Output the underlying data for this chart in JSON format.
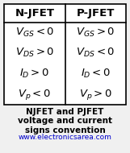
{
  "title_row": [
    "N-JFET",
    "P-JFET"
  ],
  "njfet_rows": [
    "$V_{GS}{<}0$",
    "$V_{DS}{>}0$",
    "$I_D{>}0$",
    "$V_p{<}0$"
  ],
  "pjfet_rows": [
    "$V_{GS}{>}0$",
    "$V_{DS}{<}0$",
    "$I_D{<}0$",
    "$V_p{>}0$"
  ],
  "caption_lines": [
    "NJFET and PJFET",
    "voltage and current",
    "signs convention"
  ],
  "website": "www.electronicsarea.com",
  "bg_color": "#f0f0f0",
  "table_bg": "#ffffff",
  "header_bg": "#ffffff",
  "table_border": "#000000",
  "caption_color": "#000000",
  "website_color": "#0000cc",
  "header_fontsize": 9.5,
  "cell_fontsize": 9.5,
  "caption_fontsize": 7.5,
  "website_fontsize": 6.5
}
